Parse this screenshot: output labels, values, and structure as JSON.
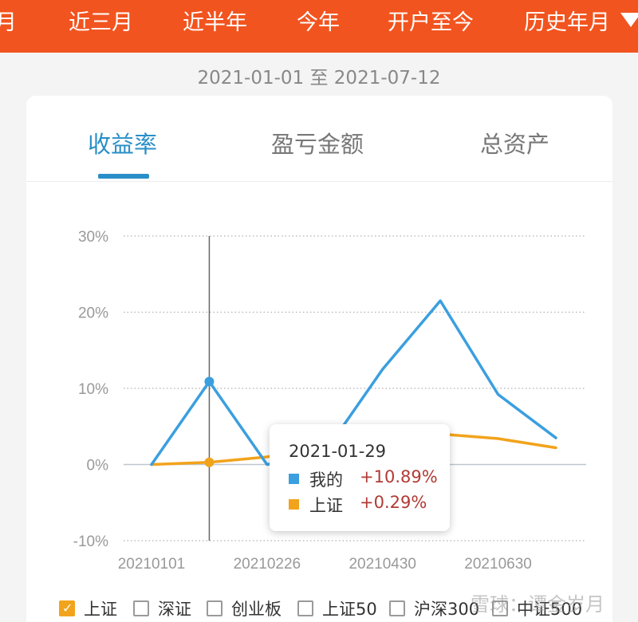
{
  "period_tabs": [
    {
      "label": "月"
    },
    {
      "label": "近三月"
    },
    {
      "label": "近半年"
    },
    {
      "label": "今年",
      "active": true
    },
    {
      "label": "开户至今"
    },
    {
      "label": "历史年月"
    }
  ],
  "date_range": "2021-01-01 至 2021-07-12",
  "metric_tabs": [
    {
      "label": "收益率",
      "active": true
    },
    {
      "label": "盈亏金额"
    },
    {
      "label": "总资产"
    }
  ],
  "tooltip": {
    "date": "2021-01-29",
    "rows": [
      {
        "name": "我的",
        "value": "+10.89%",
        "color": "#3b9fdf"
      },
      {
        "name": "上证",
        "value": "+0.29%",
        "color": "#f2a31c"
      }
    ]
  },
  "legend": [
    {
      "label": "上证",
      "checked": true
    },
    {
      "label": "深证",
      "checked": false
    },
    {
      "label": "创业板",
      "checked": false
    },
    {
      "label": "上证50",
      "checked": false
    },
    {
      "label": "沪深300",
      "checked": false
    },
    {
      "label": "中证500",
      "checked": false
    }
  ],
  "watermark": "雪球：谭金岁月",
  "colors": {
    "brand": "#f2541f",
    "accent": "#2a8fc8",
    "series_mine": "#3b9fdf",
    "series_index": "#f2a31c",
    "positive": "#b23a36"
  },
  "chart_data": {
    "type": "line",
    "x": [
      "20210101",
      "20210129",
      "20210226",
      "20210331",
      "20210430",
      "20210531",
      "20210630",
      "20210712"
    ],
    "x_tick_labels": [
      "20210101",
      "20210226",
      "20210430",
      "20210630"
    ],
    "y_tick_labels": [
      "30%",
      "20%",
      "10%",
      "0%",
      "-10%"
    ],
    "ylim": [
      -10,
      30
    ],
    "grid": true,
    "cursor_x": "20210129",
    "series": [
      {
        "name": "我的",
        "color": "#3b9fdf",
        "values": [
          0,
          10.89,
          0,
          1.6,
          12.5,
          21.5,
          9.2,
          3.5
        ]
      },
      {
        "name": "上证",
        "color": "#f2a31c",
        "values": [
          0,
          0.29,
          1.0,
          2.5,
          3.8,
          4.0,
          3.4,
          2.2
        ]
      }
    ]
  }
}
